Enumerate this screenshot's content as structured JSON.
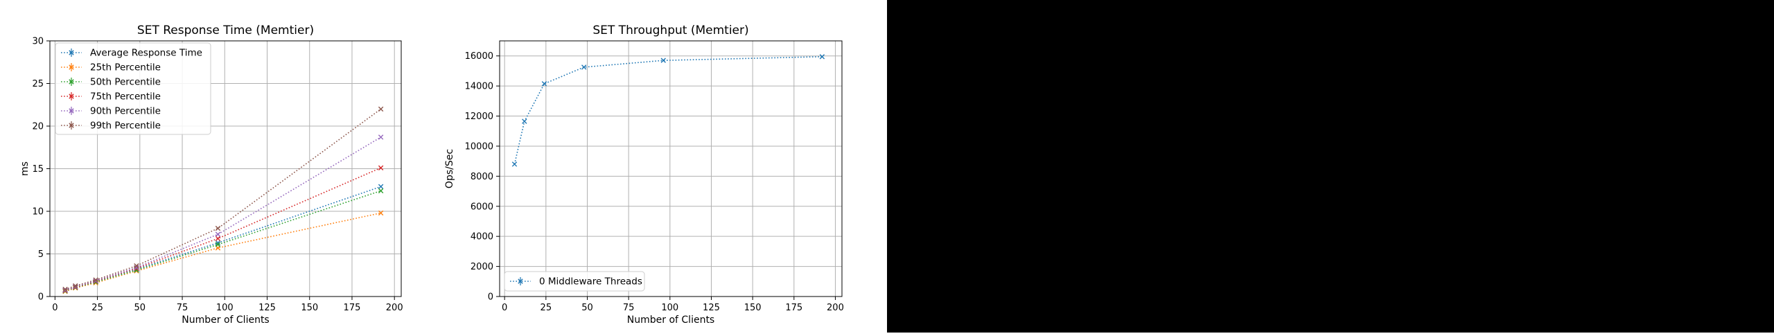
{
  "colors": {
    "blue": "#1f77b4",
    "orange": "#ff7f0e",
    "green": "#2ca02c",
    "red": "#d62728",
    "purple": "#9467bd",
    "brown": "#8c564b",
    "grid": "#b0b0b0",
    "black_panel": "#000000"
  },
  "chart_data": [
    {
      "type": "line",
      "title": "SET Response Time (Memtier)",
      "xlabel": "Number of Clients",
      "ylabel": "ms",
      "xlim": [
        -3,
        204
      ],
      "ylim": [
        0,
        30
      ],
      "xticks": [
        0,
        25,
        50,
        75,
        100,
        125,
        150,
        175,
        200
      ],
      "yticks": [
        0,
        5,
        10,
        15,
        20,
        25,
        30
      ],
      "grid": true,
      "legend_position": "top-left",
      "marker": "x",
      "line_style": "dotted",
      "x": [
        6,
        12,
        24,
        48,
        96,
        192
      ],
      "series": [
        {
          "name": "Average Response Time",
          "color": "#1f77b4",
          "values": [
            0.7,
            1.1,
            1.75,
            3.2,
            6.3,
            12.9
          ]
        },
        {
          "name": "25th Percentile",
          "color": "#ff7f0e",
          "values": [
            0.6,
            1.0,
            1.6,
            3.0,
            5.7,
            9.8
          ]
        },
        {
          "name": "50th Percentile",
          "color": "#2ca02c",
          "values": [
            0.65,
            1.05,
            1.7,
            3.1,
            6.1,
            12.4
          ]
        },
        {
          "name": "75th Percentile",
          "color": "#d62728",
          "values": [
            0.7,
            1.1,
            1.8,
            3.3,
            6.8,
            15.1
          ]
        },
        {
          "name": "90th Percentile",
          "color": "#9467bd",
          "values": [
            0.75,
            1.15,
            1.85,
            3.4,
            7.3,
            18.7
          ]
        },
        {
          "name": "99th Percentile",
          "color": "#8c564b",
          "values": [
            0.85,
            1.25,
            1.95,
            3.6,
            8.0,
            22.0
          ]
        }
      ]
    },
    {
      "type": "line",
      "title": "SET Throughput (Memtier)",
      "xlabel": "Number of Clients",
      "ylabel": "Ops/Sec",
      "xlim": [
        -3,
        204
      ],
      "ylim": [
        0,
        17000
      ],
      "xticks": [
        0,
        25,
        50,
        75,
        100,
        125,
        150,
        175,
        200
      ],
      "yticks": [
        0,
        2000,
        4000,
        6000,
        8000,
        10000,
        12000,
        14000,
        16000
      ],
      "grid": true,
      "legend_position": "bottom-left",
      "marker": "x",
      "line_style": "dotted",
      "x": [
        6,
        12,
        24,
        48,
        96,
        192
      ],
      "series": [
        {
          "name": "0 Middleware Threads",
          "color": "#1f77b4",
          "values": [
            8800,
            11650,
            14150,
            15250,
            15700,
            15950
          ]
        }
      ]
    }
  ]
}
